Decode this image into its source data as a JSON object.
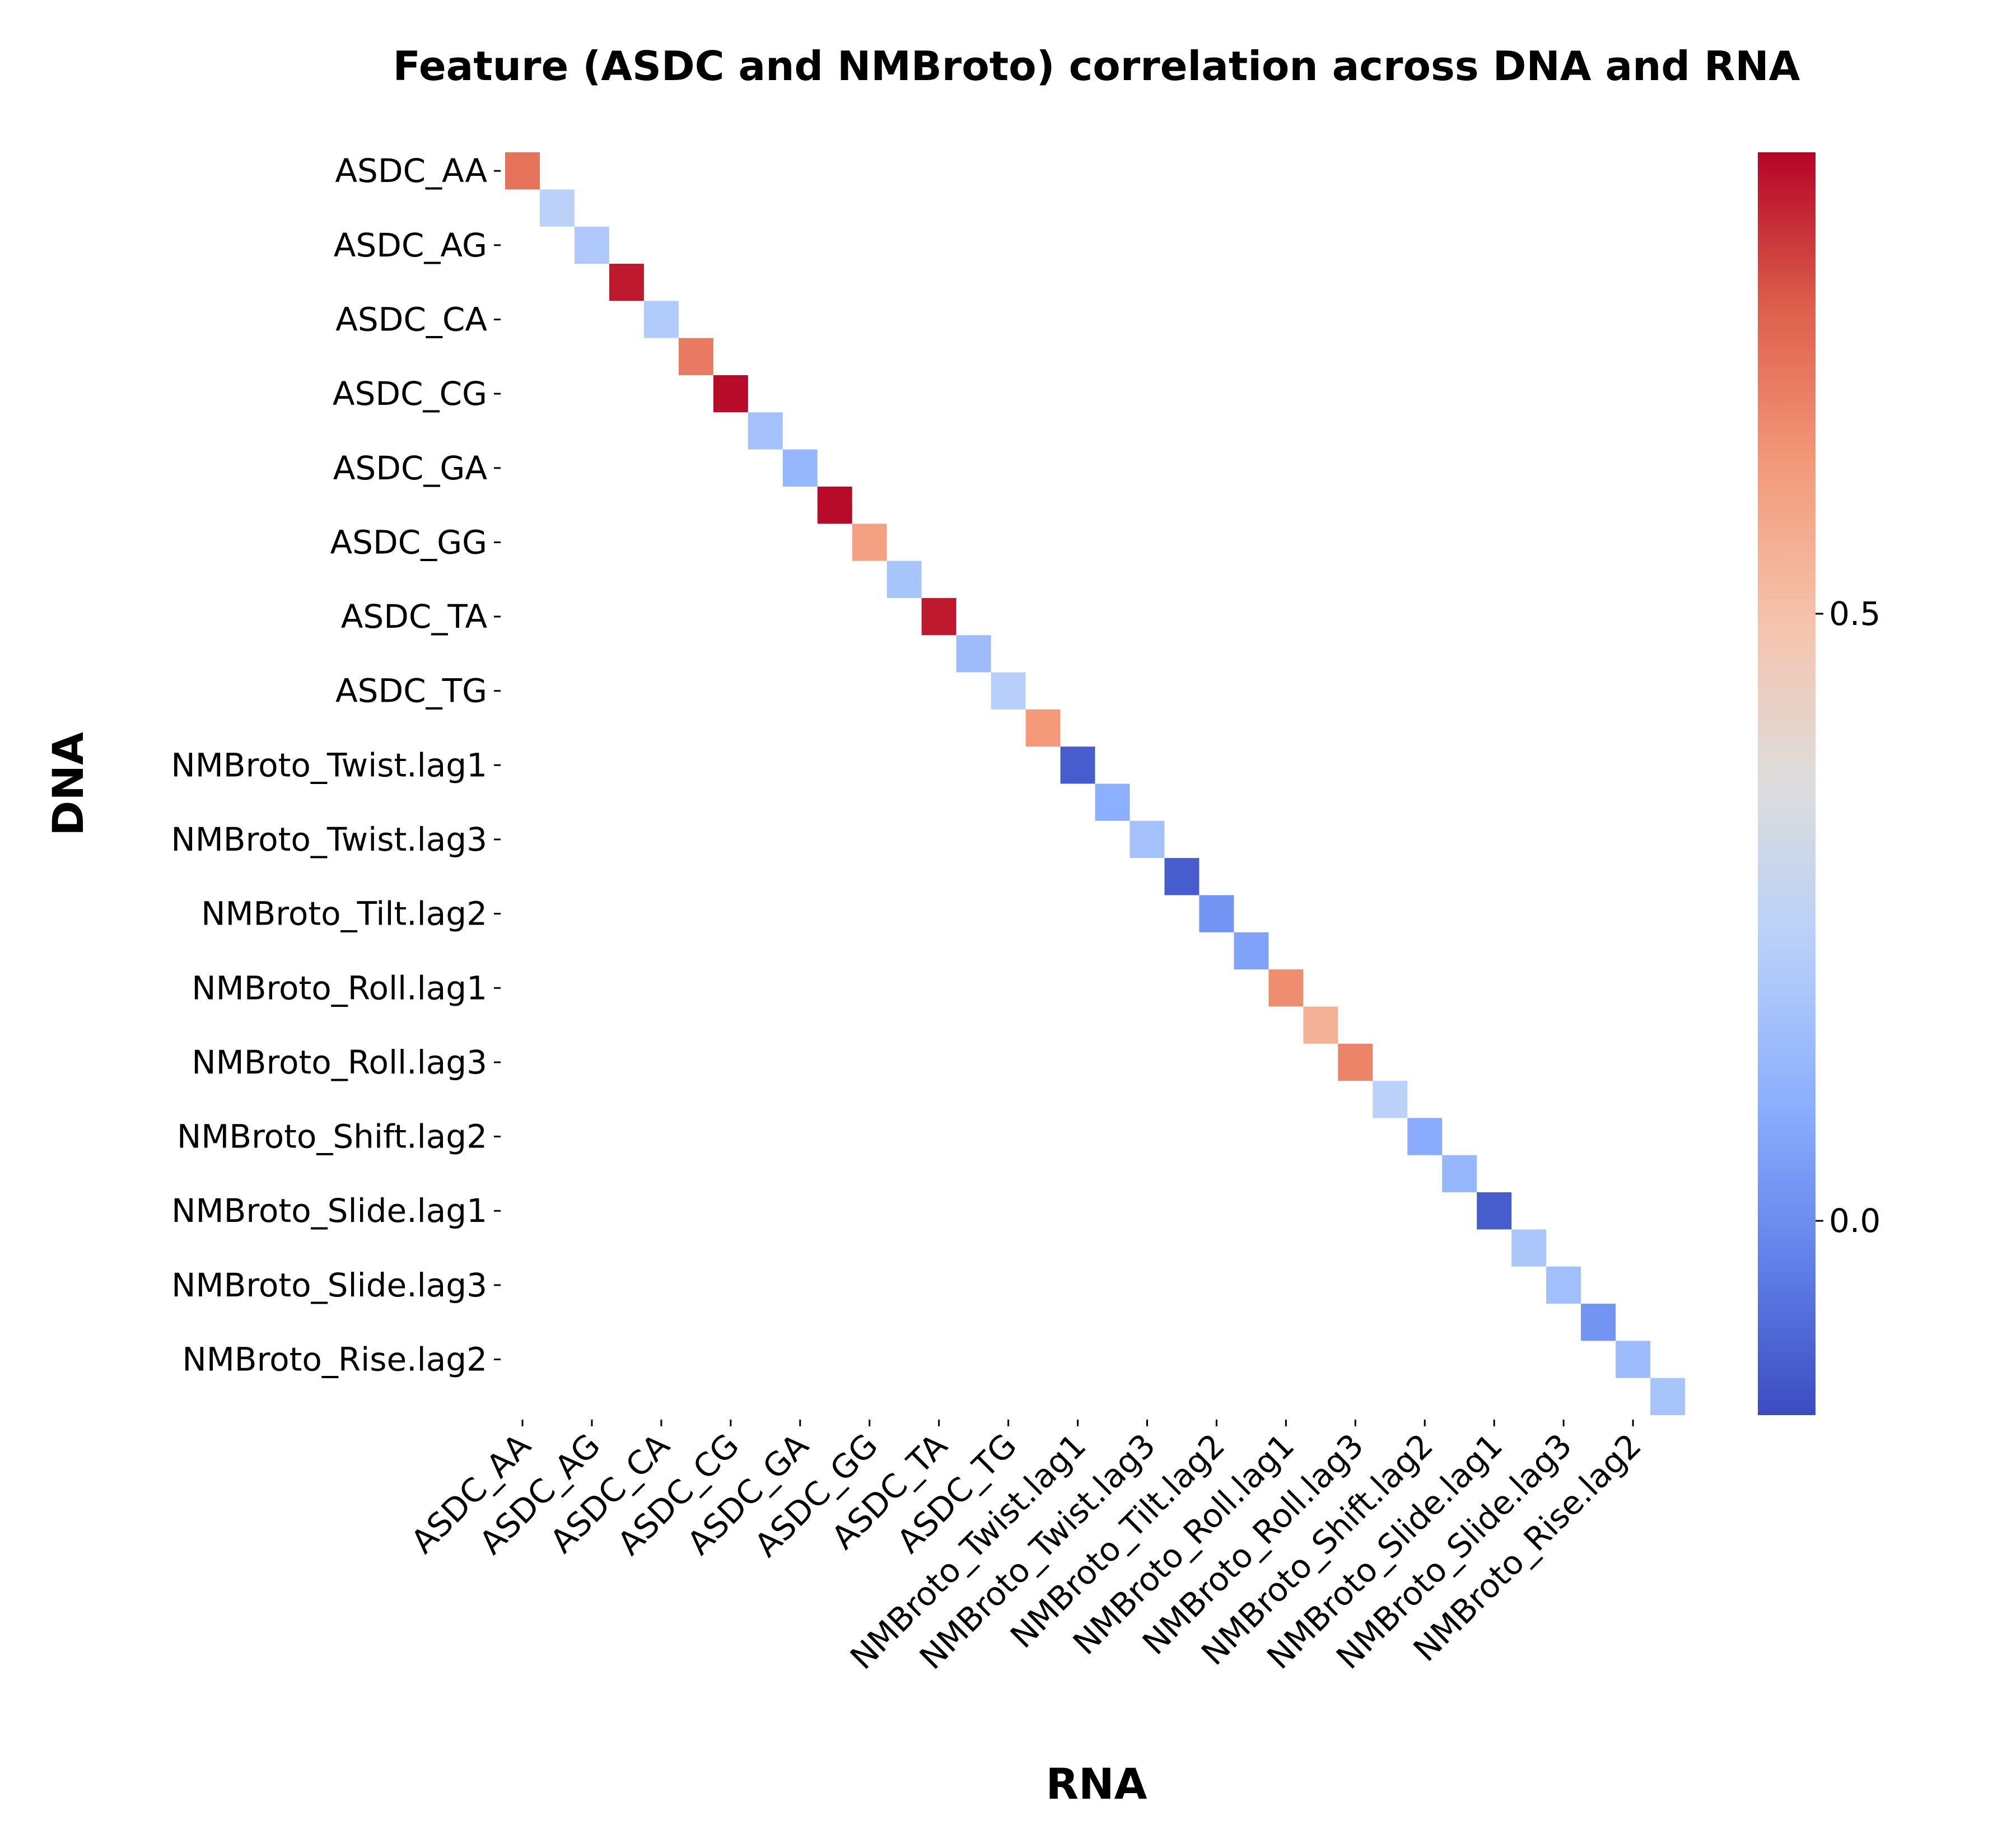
{
  "chart_data": {
    "type": "heatmap",
    "title": "Feature (ASDC and NMBroto) correlation across DNA and RNA",
    "xlabel": "RNA",
    "ylabel": "DNA",
    "x_tick_labels": [
      "ASDC_AA",
      "ASDC_AG",
      "ASDC_CA",
      "ASDC_CG",
      "ASDC_GA",
      "ASDC_GG",
      "ASDC_TA",
      "ASDC_TG",
      "NMBroto_Twist.lag1",
      "NMBroto_Twist.lag3",
      "NMBroto_Tilt.lag2",
      "NMBroto_Roll.lag1",
      "NMBroto_Roll.lag3",
      "NMBroto_Shift.lag2",
      "NMBroto_Slide.lag1",
      "NMBroto_Slide.lag3",
      "NMBroto_Rise.lag2"
    ],
    "y_tick_labels": [
      "ASDC_AA",
      "ASDC_AG",
      "ASDC_CA",
      "ASDC_CG",
      "ASDC_GA",
      "ASDC_GG",
      "ASDC_TA",
      "ASDC_TG",
      "NMBroto_Twist.lag1",
      "NMBroto_Twist.lag3",
      "NMBroto_Tilt.lag2",
      "NMBroto_Roll.lag1",
      "NMBroto_Roll.lag3",
      "NMBroto_Shift.lag2",
      "NMBroto_Slide.lag1",
      "NMBroto_Slide.lag3",
      "NMBroto_Rise.lag2"
    ],
    "n_cells": 34,
    "diagonal_values": [
      0.71,
      0.24,
      0.2,
      0.85,
      0.21,
      0.69,
      0.87,
      0.17,
      0.13,
      0.87,
      0.6,
      0.18,
      0.85,
      0.15,
      0.23,
      0.62,
      -0.12,
      0.1,
      0.17,
      -0.12,
      0.02,
      0.06,
      0.65,
      0.55,
      0.67,
      0.24,
      0.09,
      0.13,
      -0.12,
      0.19,
      0.16,
      0.02,
      0.15,
      0.18
    ],
    "colormap": "coolwarm",
    "vmin": -0.16,
    "vmax": 0.88,
    "colorbar_ticks": [
      0.0,
      0.5
    ],
    "colorbar_tick_labels": [
      "0.0",
      "0.5"
    ],
    "grid": false
  }
}
